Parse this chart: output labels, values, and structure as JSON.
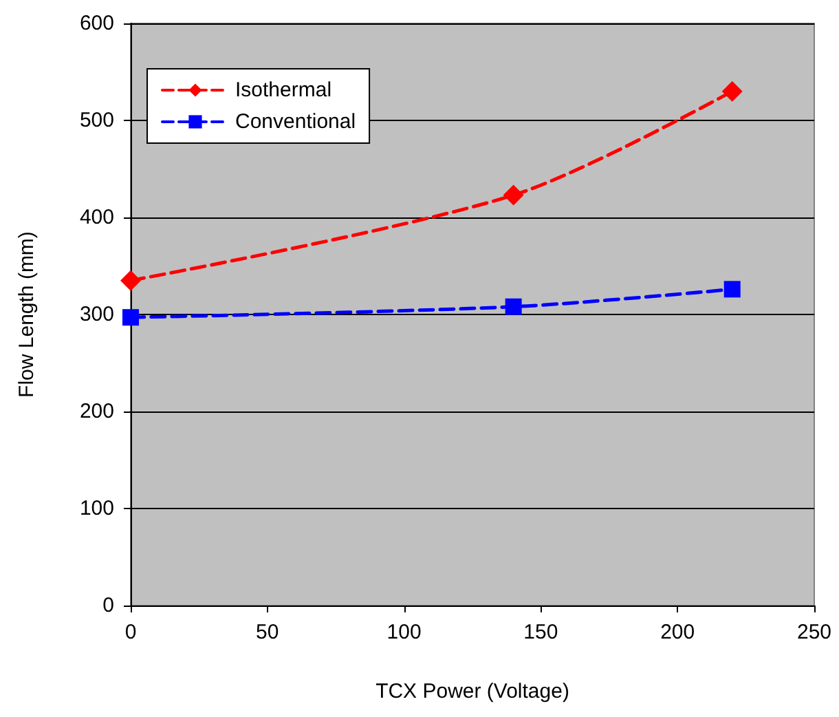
{
  "chart_data": {
    "type": "line",
    "xlabel": "TCX Power (Voltage)",
    "ylabel": "Flow Length (mm)",
    "x": [
      0,
      140,
      220
    ],
    "series": [
      {
        "name": "Isothermal",
        "color": "#ff0000",
        "marker": "diamond",
        "values": [
          335,
          423,
          530
        ]
      },
      {
        "name": "Conventional",
        "color": "#0000ff",
        "marker": "square",
        "values": [
          297,
          308,
          326
        ]
      }
    ],
    "xlim": [
      0,
      250
    ],
    "xticks": [
      0,
      50,
      100,
      150,
      200,
      250
    ],
    "ylim": [
      0,
      600
    ],
    "yticks": [
      0,
      100,
      200,
      300,
      400,
      500,
      600
    ],
    "grid": "y",
    "legend": "top left",
    "line_style": "dashed"
  }
}
